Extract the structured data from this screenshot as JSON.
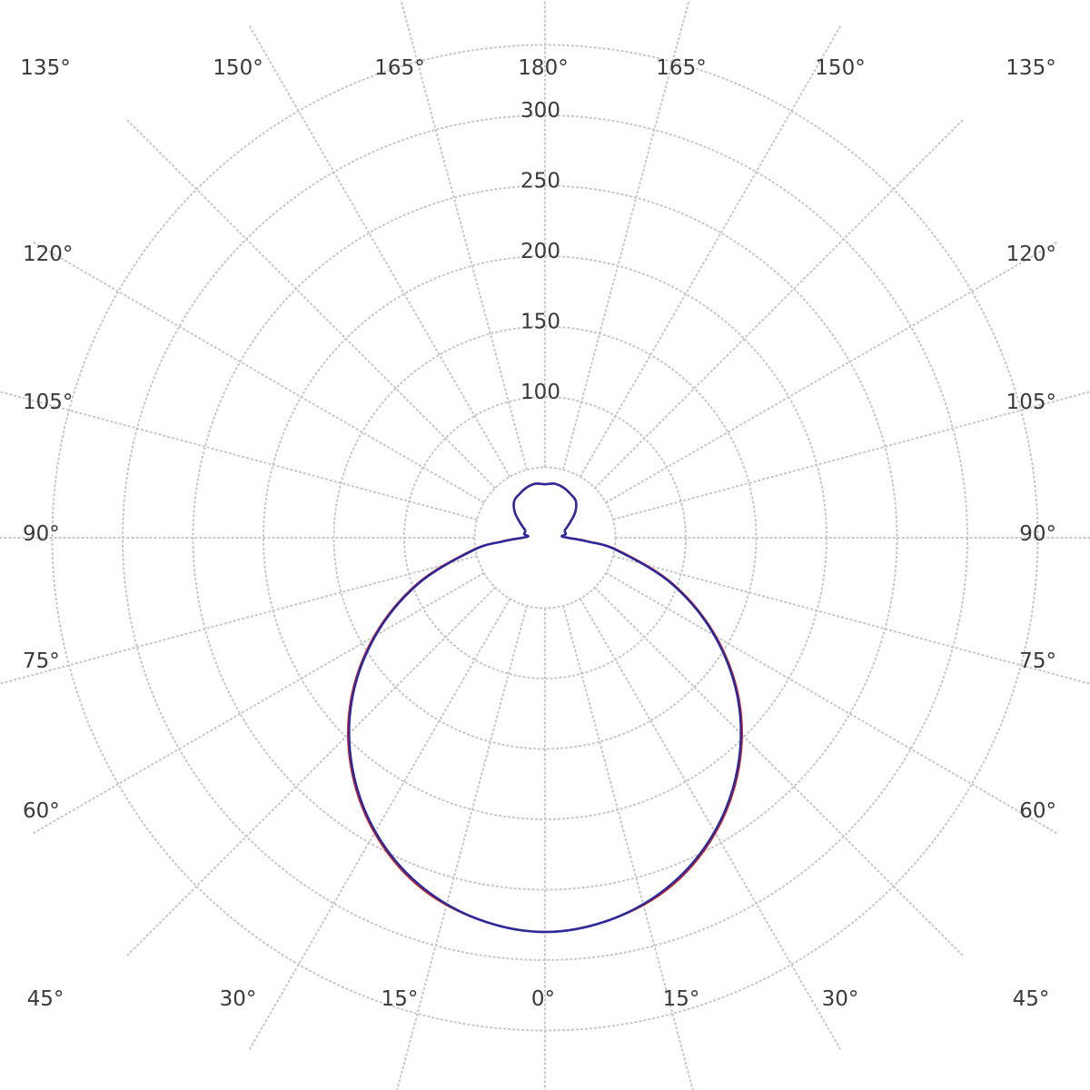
{
  "chart_data": {
    "type": "polar",
    "angle_unit": "°",
    "radial_range": [
      0,
      350
    ],
    "radial_ticks": [
      100,
      150,
      200,
      250,
      300
    ],
    "radial_tick_labels": [
      "100",
      "150",
      "200",
      "250",
      "300"
    ],
    "spoke_step_deg": 15,
    "grid": true,
    "angle_labels": {
      "top": [
        "135°",
        "150°",
        "165°",
        "180°",
        "165°",
        "150°",
        "135°"
      ],
      "bottom": [
        "45°",
        "30°",
        "15°",
        "0°",
        "15°",
        "30°",
        "45°"
      ],
      "left": [
        "120°",
        "105°",
        "90°",
        "75°",
        "60°"
      ],
      "right": [
        "120°",
        "105°",
        "90°",
        "75°",
        "60°"
      ]
    },
    "series": [
      {
        "color": "#cc2222",
        "gamma": [
          0,
          10,
          20,
          30,
          40,
          50,
          60,
          70,
          80,
          85,
          90,
          95,
          100,
          110,
          120,
          130,
          140,
          150,
          160,
          170,
          180
        ],
        "values": [
          280,
          275,
          263,
          242,
          214,
          180,
          140,
          97,
          53,
          31,
          16,
          12,
          15,
          15,
          20,
          28,
          34,
          36,
          38,
          39,
          38
        ]
      },
      {
        "color": "#2a2a9e",
        "gamma": [
          0,
          10,
          20,
          30,
          40,
          50,
          60,
          70,
          80,
          85,
          90,
          95,
          100,
          110,
          120,
          130,
          140,
          150,
          160,
          170,
          180
        ],
        "values": [
          280,
          275,
          262,
          241,
          213,
          179,
          139,
          96,
          52,
          30,
          16,
          12,
          15,
          15,
          20,
          28,
          34,
          36,
          38,
          39,
          38
        ]
      }
    ]
  }
}
